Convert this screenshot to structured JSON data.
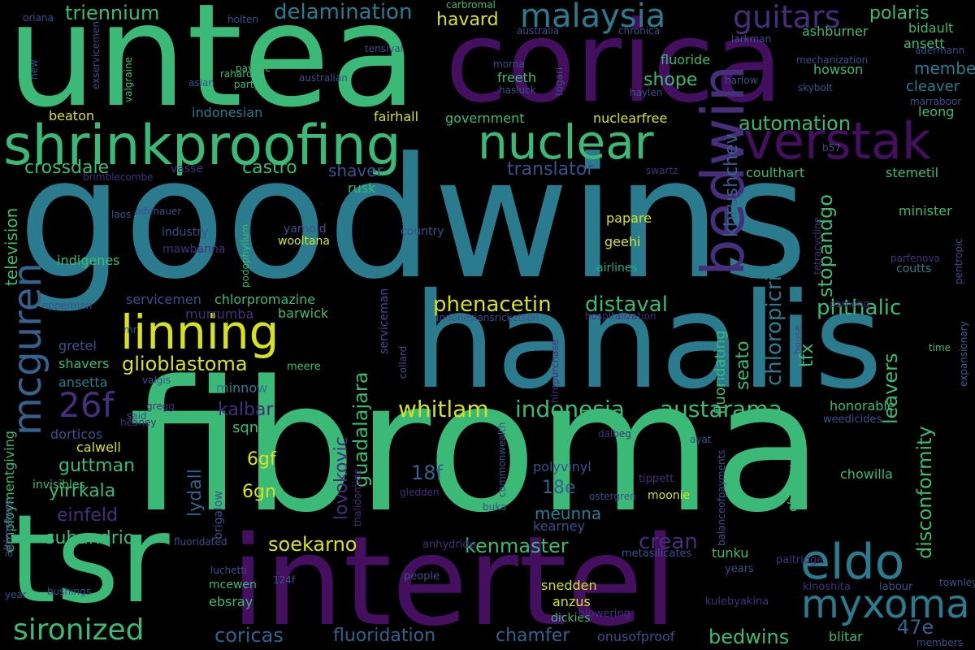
{
  "words": {
    "goodwins": "goodwins",
    "fibroma": "fibroma",
    "untea": "untea",
    "corica": "corica",
    "hanalis": "hanalis",
    "intertel": "intertel",
    "tsr": "tsr",
    "shrinkproofing": "shrinkproofing",
    "nuclear": "nuclear",
    "verstak": "verstak",
    "linning": "linning",
    "eldo": "eldo",
    "myxoma": "myxoma",
    "mcguren": "mcguren",
    "bedwin": "bedwin",
    "malaysia": "malaysia",
    "guitars": "guitars",
    "sironized": "sironized",
    "26f": "26f",
    "whitlam": "whitlam",
    "indonesia": "indonesia",
    "austarama": "austarama",
    "chloropicrin": "chloropicrin",
    "disconformity": "disconformity",
    "leavers": "leavers",
    "guadalajara": "guadalajara",
    "glioblastoma": "glioblastoma",
    "phenacetin": "phenacetin",
    "distaval": "distaval",
    "phthalic": "phthalic",
    "stopandgo": "stopandgo",
    "khrushchev": "khrushchev",
    "automation": "automation",
    "crossdale": "crossdale",
    "castro": "castro",
    "shaver": "shaver",
    "translator": "translator",
    "triennium": "triennium",
    "delamination": "delamination",
    "havard": "havard",
    "polaris": "polaris",
    "member": "member",
    "shope": "shope",
    "fluoride": "fluoride",
    "freeth": "freeth",
    "howson": "howson",
    "cleaver": "cleaver",
    "ansett": "ansett",
    "bidault": "bidault",
    "ashburner": "ashburner",
    "leong": "leong",
    "beaton": "beaton",
    "fairhall": "fairhall",
    "government": "government",
    "nuclearfree": "nuclearfree",
    "coulthart": "coulthart",
    "stemetil": "stemetil",
    "rusk": "rusk",
    "minister": "minister",
    "television": "television",
    "indigenes": "indigenes",
    "papare": "papare",
    "geehi": "geehi",
    "wooltana": "wooltana",
    "yarnold": "yarnold",
    "country": "country",
    "industry": "industry",
    "mawbanna": "mawbanna",
    "indonesian": "indonesian",
    "airlines": "airlines",
    "coutts": "coutts",
    "parfenova": "parfenova",
    "servicemen": "servicemen",
    "chlorpromazine": "chlorpromazine",
    "murrumba": "murrumba",
    "barwick": "barwick",
    "seato": "seato",
    "tfx": "tfx",
    "shavers": "shavers",
    "gretel": "gretel",
    "ansetta": "ansetta",
    "minnow": "minnow",
    "kalbar": "kalbar",
    "sqn": "sqn",
    "6gf": "6gf",
    "6gn": "6gn",
    "18f": "18f",
    "18e": "18e",
    "guttman": "guttman",
    "yirrkala": "yirrkala",
    "einfeld": "einfeld",
    "subandrio": "subandrio",
    "calwell": "calwell",
    "dorticos": "dorticos",
    "lydall": "lydall",
    "lovokovic": "lovokovic",
    "meunna": "meunna",
    "kearney": "kearney",
    "polyvinyl": "polyvinyl",
    "chowilla": "chowilla",
    "honorable": "honorable",
    "weedicides": "weedicides",
    "soekarno": "soekarno",
    "kenmaster": "kenmaster",
    "crean": "crean",
    "tunku": "tunku",
    "chaney": "chaney",
    "moonie": "moonie",
    "coricas": "coricas",
    "fluoridation": "fluoridation",
    "chamfer": "chamfer",
    "bedwins": "bedwins",
    "47e": "47e",
    "blitar": "blitar",
    "snedden": "snedden",
    "anzus": "anzus",
    "dickies": "dickies",
    "onusofproof": "onusofproof",
    "ebsray": "ebsray",
    "mcewen": "mcewen",
    "luchetti": "luchetti",
    "fluoridated": "fluoridated",
    "124f": "124f",
    "people": "people",
    "years": "years",
    "kinoshita": "kinoshita",
    "labour": "labour",
    "townley": "townley",
    "members": "members",
    "paltridge": "paltridge",
    "kulebyakina": "kulebyakina",
    "blowering": "blowering",
    "metasilicates": "metasilicates",
    "anhydride": "anhydride",
    "buka": "buka",
    "ostergren": "ostergren",
    "gledden": "gledden",
    "tippett": "tippett",
    "dalbeg": "dalbeg",
    "ayat": "ayat",
    "heaney": "heaney",
    "gregg": "gregg",
    "said": "said",
    "valgis": "valgis",
    "meere": "meere",
    "collard": "collard",
    "serviceman": "serviceman",
    "hirepurchase": "hirepurchase",
    "indonesiansricketson": "indonesiansricketson",
    "hospitalization": "hospitalization",
    "house": "house",
    "pamong": "pamong",
    "time": "time",
    "expansionary": "expansionary",
    "pentropic": "pentropic",
    "tetracycline": "tetracycline",
    "fluoridating": "fluoridating",
    "podophyllum": "podophyllum",
    "adenauer": "adenauer",
    "laos": "laos",
    "vasse": "vasse",
    "brimblecombe": "brimblecombe",
    "opperman": "opperman",
    "mr": "mr",
    "employmentgiving": "employmentgiving",
    "altimeters": "altimeters",
    "invisibles": "invisibles",
    "brigalow": "brigalow",
    "thalidomide": "thalidomide",
    "commonwealth": "commonwealth",
    "balanceofpayments": "balanceofpayments",
    "oriana": "oriana",
    "exservicemen": "exservicemen",
    "new": "new",
    "holten": "holten",
    "rahardja": "rahardja",
    "pavelic": "pavelic",
    "party": "party",
    "asian": "asian",
    "australian": "australian",
    "tensival": "tensival",
    "valgraine": "valgraine",
    "morna": "morna",
    "hasluck": "hasluck",
    "togari": "togari",
    "australia": "australia",
    "chronica": "chronica",
    "carbromal": "carbromal",
    "larkman": "larkman",
    "adermann": "adermann",
    "mechanization": "mechanization",
    "skybolt": "skybolt",
    "harlow": "harlow",
    "haylen": "haylen",
    "marraboor": "marraboor",
    "b57": "b57",
    "swartz": "swartz",
    "bushings": "bushings",
    "year": "year"
  }
}
